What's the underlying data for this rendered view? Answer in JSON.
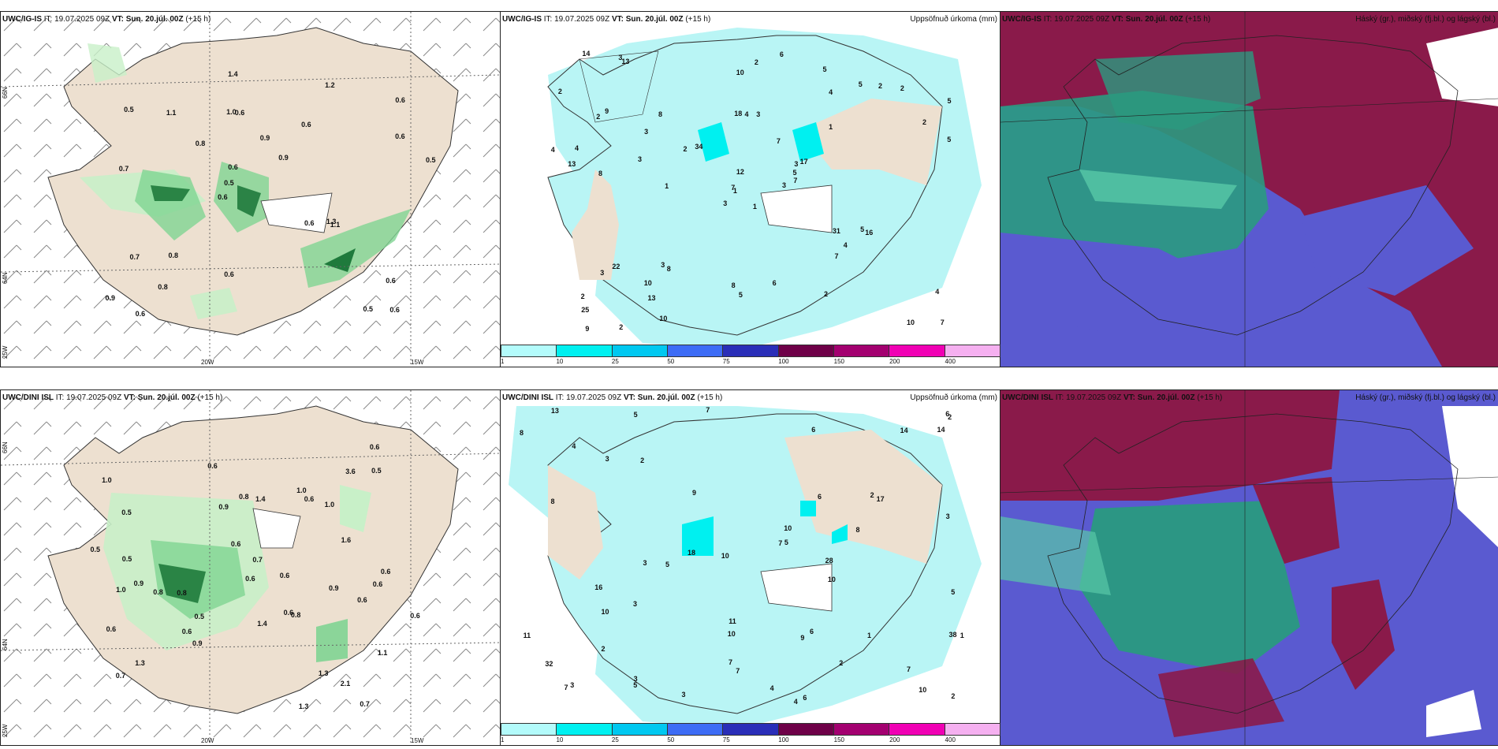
{
  "rows": [
    {
      "model": "UWC/IG-IS",
      "it": "IT: 19.07.2025 09Z",
      "vt_label": "VT:",
      "vt": "Sun. 20.júl. 00Z",
      "lead": "(+15 h)",
      "precip_title": "Uppsöfnuð úrkoma (mm)",
      "cloud_title": "Háský (gr.), miðský (fj.bl.) og lágský (bl.)",
      "wind_values": [
        "0.6",
        "0.7",
        "0.6",
        "0.6",
        "0.6",
        "0.6",
        "1.0",
        "0.9",
        "0.7",
        "0.8",
        "0.9",
        "0.8",
        "0.6",
        "0.9",
        "1.1",
        "0.5",
        "1.4",
        "0.5",
        "0.6",
        "0.6",
        "0.5",
        "0.6",
        "0.6",
        "1.1",
        "1.2",
        "0.8",
        "0.5",
        "0.6",
        "1.3"
      ],
      "precip_values": [
        "1",
        "2",
        "1",
        "2",
        "3",
        "8",
        "5",
        "3",
        "4",
        "3",
        "13",
        "7",
        "8",
        "5",
        "3",
        "1",
        "2",
        "18",
        "7",
        "22",
        "34",
        "25",
        "13",
        "4",
        "17",
        "16",
        "9",
        "10",
        "13",
        "31",
        "5",
        "7",
        "8",
        "12",
        "8",
        "5",
        "3",
        "10",
        "4",
        "5",
        "6",
        "2",
        "3",
        "7",
        "10",
        "4",
        "5",
        "9",
        "5",
        "7",
        "3",
        "2",
        "2",
        "4",
        "2",
        "10",
        "3",
        "14",
        "6",
        "2",
        "2",
        "1",
        "4",
        "3",
        "2"
      ]
    },
    {
      "model": "UWC/DINI ISL",
      "it": "IT: 19.07.2025 09Z",
      "vt_label": "VT:",
      "vt": "Sun. 20.júl. 00Z",
      "lead": "(+15 h)",
      "precip_title": "Uppsöfnuð úrkoma (mm)",
      "cloud_title": "Háský (gr.), miðský (fj.bl.) og lágský (bl.)",
      "wind_values": [
        "0.7",
        "0.9",
        "0.6",
        "1.0",
        "1.1",
        "0.5",
        "1.3",
        "0.8",
        "1.0",
        "0.8",
        "0.6",
        "2.1",
        "0.9",
        "0.6",
        "0.6",
        "0.6",
        "0.9",
        "0.7",
        "0.5",
        "0.7",
        "0.6",
        "1.4",
        "1.6",
        "0.6",
        "0.6",
        "0.5",
        "0.8",
        "0.6",
        "0.6",
        "0.5",
        "0.8",
        "1.0",
        "0.6",
        "1.0",
        "0.9",
        "0.6",
        "0.6",
        "1.3",
        "3.6",
        "1.3",
        "0.5",
        "1.4"
      ],
      "precip_values": [
        "3",
        "4",
        "3",
        "2",
        "5",
        "4",
        "3",
        "10",
        "7",
        "9",
        "14",
        "7",
        "18",
        "10",
        "6",
        "7",
        "8",
        "5",
        "5",
        "8",
        "9",
        "2",
        "10",
        "7",
        "17",
        "16",
        "11",
        "10",
        "13",
        "10",
        "10",
        "6",
        "11",
        "14",
        "2",
        "28",
        "38",
        "32",
        "6",
        "7",
        "5",
        "8",
        "1",
        "3",
        "2",
        "6",
        "5",
        "4",
        "3",
        "7",
        "6",
        "3",
        "2",
        "1",
        "3",
        "2"
      ]
    }
  ],
  "axes": {
    "lon": [
      "20W",
      "15W"
    ],
    "lat_top": "66N",
    "lat_mid": "64N",
    "lat_bottom": "25W"
  },
  "colorbar": {
    "ticks": [
      "1",
      "10",
      "25",
      "50",
      "75",
      "100",
      "150",
      "200",
      "400"
    ],
    "colors": [
      "#b3fbfb",
      "#00f0f0",
      "#00c8f0",
      "#3d6cf5",
      "#2a2eb8",
      "#6e0048",
      "#a30070",
      "#f000b4",
      "#f5b0f0"
    ]
  },
  "colors": {
    "land": "#ede0d0",
    "sea": "#ffffff",
    "precip_light": "#b9f5f5",
    "wind_green_light": "#c8f0c8",
    "wind_green_mid": "#7fd492",
    "wind_green_dark": "#1f7a3c",
    "cloud_high": "#8a1a4a",
    "cloud_mid": "#2a9a80",
    "cloud_low": "#5a5ad0"
  }
}
